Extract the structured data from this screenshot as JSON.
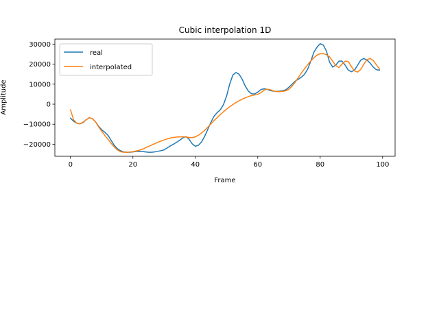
{
  "chart_data": {
    "type": "line",
    "title": "Cubic interpolation 1D",
    "xlabel": "Frame",
    "ylabel": "Amplitude",
    "xlim": [
      -5,
      104
    ],
    "ylim": [
      -26000,
      32500
    ],
    "xticks": [
      0,
      20,
      40,
      60,
      80,
      100
    ],
    "yticks": [
      -20000,
      -10000,
      0,
      10000,
      20000,
      30000
    ],
    "xtick_labels": [
      "0",
      "20",
      "40",
      "60",
      "80",
      "100"
    ],
    "ytick_labels": [
      "−20000",
      "−10000",
      "0",
      "10000",
      "20000",
      "30000"
    ],
    "grid": false,
    "legend_position": "top-left",
    "series": [
      {
        "name": "real",
        "color": "#1f77b4",
        "x": [
          0,
          1,
          2,
          3,
          4,
          5,
          6,
          7,
          8,
          9,
          10,
          11,
          12,
          13,
          14,
          15,
          16,
          17,
          18,
          19,
          20,
          21,
          22,
          23,
          24,
          25,
          26,
          27,
          28,
          29,
          30,
          31,
          32,
          33,
          34,
          35,
          36,
          37,
          38,
          39,
          40,
          41,
          42,
          43,
          44,
          45,
          46,
          47,
          48,
          49,
          50,
          51,
          52,
          53,
          54,
          55,
          56,
          57,
          58,
          59,
          60,
          61,
          62,
          63,
          64,
          65,
          66,
          67,
          68,
          69,
          70,
          71,
          72,
          73,
          74,
          75,
          76,
          77,
          78,
          79,
          80,
          81,
          82,
          83,
          84,
          85,
          86,
          87,
          88,
          89,
          90,
          91,
          92,
          93,
          94,
          95,
          96,
          97,
          98,
          99
        ],
        "y": [
          -7000,
          -8500,
          -9500,
          -9800,
          -9200,
          -7800,
          -6800,
          -7200,
          -8800,
          -11000,
          -12800,
          -14000,
          -15500,
          -18000,
          -20500,
          -22200,
          -23200,
          -23800,
          -24000,
          -24000,
          -23800,
          -23600,
          -23500,
          -23600,
          -23800,
          -24000,
          -24000,
          -23800,
          -23500,
          -23200,
          -22800,
          -21800,
          -20800,
          -20000,
          -19000,
          -18000,
          -16800,
          -16200,
          -17500,
          -19800,
          -21000,
          -20500,
          -18800,
          -16000,
          -12500,
          -9000,
          -6000,
          -4200,
          -2800,
          -300,
          4000,
          10000,
          14500,
          15800,
          15000,
          12500,
          9000,
          6500,
          5200,
          5100,
          6000,
          7300,
          7700,
          7400,
          6800,
          6500,
          6400,
          6500,
          6700,
          7200,
          8500,
          10000,
          11500,
          12500,
          13500,
          15000,
          17500,
          21500,
          26000,
          28500,
          30200,
          29500,
          26500,
          21000,
          18500,
          19500,
          21500,
          21500,
          19500,
          17000,
          16200,
          17000,
          19500,
          22000,
          22800,
          22000,
          20500,
          18500,
          17200,
          17000
        ],
        "note": "",
        "xvals": []
      },
      {
        "name": "interpolated",
        "color": "#ff7f0e",
        "x": [
          0,
          1,
          2,
          3,
          4,
          5,
          6,
          7,
          8,
          9,
          10,
          11,
          12,
          13,
          14,
          15,
          16,
          17,
          18,
          19,
          20,
          21,
          22,
          23,
          24,
          25,
          26,
          27,
          28,
          29,
          30,
          31,
          32,
          33,
          34,
          35,
          36,
          37,
          38,
          39,
          40,
          41,
          42,
          43,
          44,
          45,
          46,
          47,
          48,
          49,
          50,
          51,
          52,
          53,
          54,
          55,
          56,
          57,
          58,
          59,
          60,
          61,
          62,
          63,
          64,
          65,
          66,
          67,
          68,
          69,
          70,
          71,
          72,
          73,
          74,
          75,
          76,
          77,
          78,
          79,
          80,
          81,
          82,
          83,
          84,
          85,
          86,
          87,
          88,
          89,
          90,
          91,
          92,
          93,
          94,
          95,
          96,
          97,
          98,
          99
        ],
        "y": [
          -2800,
          -7800,
          -9500,
          -9800,
          -9000,
          -7800,
          -6700,
          -7200,
          -8800,
          -11300,
          -13500,
          -15600,
          -17500,
          -19500,
          -21300,
          -22800,
          -23700,
          -24000,
          -24000,
          -23900,
          -23700,
          -23400,
          -23000,
          -22500,
          -21800,
          -21100,
          -20400,
          -19700,
          -19000,
          -18400,
          -17800,
          -17300,
          -16900,
          -16600,
          -16400,
          -16300,
          -16300,
          -16400,
          -16600,
          -16700,
          -16300,
          -15500,
          -14400,
          -13000,
          -11500,
          -9800,
          -8200,
          -6700,
          -5200,
          -3800,
          -2500,
          -1300,
          -200,
          800,
          1700,
          2500,
          3200,
          3800,
          4300,
          4600,
          4900,
          5700,
          7000,
          7500,
          7200,
          6600,
          6300,
          6300,
          6400,
          6700,
          7500,
          9000,
          11000,
          13300,
          15600,
          17700,
          19700,
          21600,
          23200,
          24500,
          25200,
          25200,
          24700,
          23600,
          21500,
          19200,
          18300,
          20000,
          21500,
          21300,
          18800,
          16600,
          16000,
          17400,
          20000,
          22200,
          22800,
          21800,
          19700,
          17600
        ],
        "note": "",
        "xvals": []
      }
    ]
  }
}
